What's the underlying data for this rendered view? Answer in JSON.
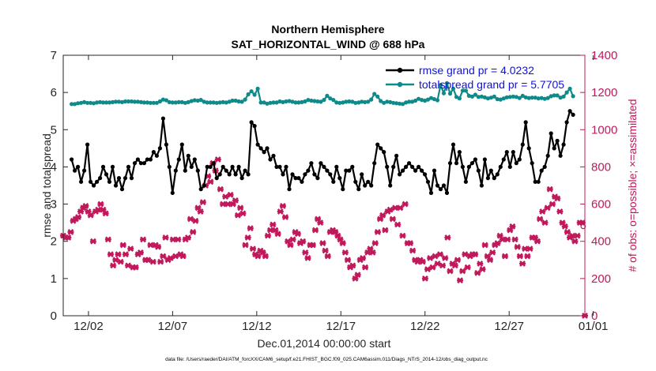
{
  "chart_data": {
    "type": "line",
    "title": "Northern Hemisphere",
    "subtitle": "SAT_HORIZONTAL_WIND @ 688 hPa",
    "xlabel": "Dec.01,2014 00:00:00 start",
    "ylabel": "rmse and totalspread",
    "y2label": "# of obs: o=possible; ×=assimilated",
    "x_ticks": [
      "12/02",
      "12/07",
      "12/12",
      "12/17",
      "12/22",
      "12/27",
      "01/01"
    ],
    "y_ticks": [
      "0",
      "1",
      "2",
      "3",
      "4",
      "5",
      "6",
      "7"
    ],
    "y2_ticks": [
      "0",
      "200",
      "400",
      "600",
      "800",
      "1000",
      "1200",
      "1400"
    ],
    "xlim": [
      0.5,
      31.5
    ],
    "ylim": [
      0,
      7
    ],
    "y2lim": [
      0,
      1400
    ],
    "legend": {
      "position": "top-right",
      "entries": [
        "rmse grand pr = 4.0232",
        "totalspread grand pr = 5.7705"
      ]
    },
    "footnote": "data file: /Users/raeder/DAI/ATM_forcXX/CAM6_setup/f.e21.FHIST_BGC.f09_025.CAM6assim.011/Diags_NTrS_2014-12/obs_diag_output.nc",
    "series": [
      {
        "name": "rmse",
        "axis": "left",
        "color": "#000000",
        "marker": "dot",
        "values": [
          4.2,
          3.9,
          4.0,
          3.6,
          3.9,
          4.6,
          3.6,
          3.5,
          3.6,
          3.7,
          4.0,
          3.8,
          3.6,
          4.0,
          3.5,
          3.7,
          3.4,
          3.7,
          4.0,
          3.7,
          4.1,
          4.2,
          4.1,
          4.1,
          4.2,
          4.2,
          4.4,
          4.3,
          4.5,
          5.3,
          4.6,
          4.0,
          3.3,
          3.9,
          4.2,
          4.6,
          3.9,
          4.3,
          4.0,
          4.2,
          3.9,
          3.4,
          3.5,
          4.0,
          4.0,
          4.1,
          3.7,
          3.8,
          4.0,
          3.9,
          3.8,
          4.0,
          3.8,
          4.0,
          3.7,
          3.9,
          3.8,
          5.2,
          5.1,
          4.6,
          4.5,
          4.4,
          4.5,
          4.2,
          4.3,
          4.0,
          4.0,
          3.8,
          4.0,
          3.4,
          3.8,
          3.7,
          3.7,
          3.6,
          3.8,
          3.9,
          4.1,
          3.8,
          3.7,
          4.1,
          4.0,
          3.9,
          3.8,
          3.6,
          4.0,
          3.7,
          3.4,
          3.9,
          3.9,
          4.0,
          3.6,
          3.4,
          3.8,
          3.5,
          3.6,
          3.5,
          4.1,
          4.6,
          4.5,
          4.4,
          4.0,
          3.5,
          4.0,
          4.3,
          3.8,
          3.9,
          4.0,
          4.1,
          4.0,
          3.9,
          4.0,
          3.9,
          3.8,
          3.6,
          3.3,
          3.9,
          3.5,
          3.4,
          3.5,
          3.3,
          4.1,
          4.6,
          4.1,
          4.4,
          4.0,
          3.6,
          4.0,
          4.1,
          4.2,
          3.9,
          3.5,
          4.2,
          3.7,
          3.9,
          3.7,
          3.8,
          4.0,
          4.2,
          4.4,
          4.0,
          4.4,
          4.1,
          4.2,
          4.6,
          5.2,
          4.5,
          4.1,
          3.6,
          3.6,
          3.9,
          4.0,
          4.3,
          4.9,
          4.5,
          4.7,
          4.3,
          4.6,
          5.2,
          5.5,
          5.4
        ]
      },
      {
        "name": "totalspread",
        "axis": "left",
        "color": "#0f8a8a",
        "marker": "dot",
        "values": [
          5.69,
          5.69,
          5.71,
          5.72,
          5.74,
          5.72,
          5.72,
          5.71,
          5.73,
          5.74,
          5.73,
          5.73,
          5.73,
          5.74,
          5.75,
          5.75,
          5.74,
          5.76,
          5.76,
          5.76,
          5.75,
          5.75,
          5.74,
          5.73,
          5.73,
          5.72,
          5.72,
          5.72,
          5.76,
          5.81,
          5.79,
          5.74,
          5.73,
          5.73,
          5.74,
          5.74,
          5.72,
          5.74,
          5.77,
          5.79,
          5.78,
          5.8,
          5.75,
          5.73,
          5.73,
          5.73,
          5.72,
          5.73,
          5.74,
          5.73,
          5.75,
          5.78,
          5.78,
          5.76,
          5.75,
          5.81,
          5.95,
          6.03,
          5.94,
          6.1,
          5.73,
          5.73,
          5.7,
          5.72,
          5.73,
          5.73,
          5.76,
          5.74,
          5.76,
          5.77,
          5.75,
          5.73,
          5.73,
          5.74,
          5.76,
          5.8,
          5.78,
          5.77,
          5.76,
          5.75,
          5.8,
          5.91,
          5.84,
          5.8,
          5.73,
          5.72,
          5.73,
          5.75,
          5.76,
          5.75,
          5.72,
          5.73,
          5.75,
          5.74,
          5.75,
          5.81,
          5.96,
          5.89,
          5.77,
          5.72,
          5.75,
          5.74,
          5.72,
          5.71,
          5.7,
          5.69,
          5.73,
          5.75,
          5.75,
          5.78,
          5.83,
          5.8,
          5.78,
          5.81,
          5.85,
          5.82,
          5.79,
          6.2,
          5.98,
          6.25,
          5.97,
          6.1,
          5.88,
          5.84,
          6.05,
          6.05,
          5.91,
          5.89,
          5.94,
          5.88,
          5.89,
          5.87,
          5.84,
          5.86,
          5.89,
          5.82,
          5.81,
          5.84,
          5.87,
          5.88,
          5.89,
          5.88,
          5.85,
          5.91,
          5.87,
          5.85,
          5.86,
          5.86,
          5.84,
          5.85,
          5.83,
          5.85,
          5.9,
          5.92,
          5.92,
          5.86,
          5.89,
          6.0,
          6.1,
          5.9
        ]
      },
      {
        "name": "assimilated obs",
        "axis": "right",
        "color": "#c0185a",
        "marker": "x",
        "values": [
          430,
          420,
          420,
          450,
          510,
          520,
          530,
          560,
          580,
          590,
          560,
          540,
          400,
          560,
          570,
          600,
          570,
          550,
          410,
          330,
          270,
          300,
          330,
          290,
          380,
          330,
          270,
          360,
          260,
          260,
          330,
          340,
          410,
          300,
          300,
          380,
          290,
          380,
          370,
          290,
          320,
          420,
          300,
          310,
          410,
          320,
          410,
          330,
          320,
          410,
          420,
          520,
          450,
          510,
          580,
          560,
          610,
          700,
          750,
          720,
          820,
          780,
          840,
          680,
          600,
          640,
          600,
          650,
          600,
          620,
          540,
          580,
          550,
          380,
          420,
          470,
          360,
          330,
          320,
          350,
          340,
          320,
          430,
          460,
          490,
          460,
          440,
          560,
          590,
          530,
          400,
          380,
          410,
          450,
          440,
          390,
          400,
          340,
          310,
          380,
          380,
          460,
          520,
          500,
          390,
          350,
          320,
          450,
          460,
          450,
          430,
          410,
          390,
          340,
          300,
          260,
          270,
          200,
          220,
          300,
          310,
          260,
          340,
          360,
          340,
          390,
          450,
          520,
          540,
          460,
          560,
          570,
          520,
          580,
          490,
          580,
          430,
          600,
          390,
          390,
          350,
          300,
          290,
          300,
          290,
          200,
          250,
          310,
          260,
          320,
          280,
          330,
          270,
          310,
          420,
          240,
          280,
          270,
          300,
          190,
          240,
          330,
          260,
          320,
          330,
          330,
          230,
          280,
          250,
          380,
          320,
          300,
          340,
          380,
          390,
          430,
          410,
          320,
          410,
          460,
          480,
          410,
          370,
          320,
          280,
          360,
          320,
          360,
          420,
          420,
          400,
          520,
          560,
          500,
          580,
          680,
          600,
          640,
          630,
          560,
          500,
          480,
          450,
          420,
          430,
          400,
          430,
          500,
          500,
          0
        ]
      }
    ]
  }
}
